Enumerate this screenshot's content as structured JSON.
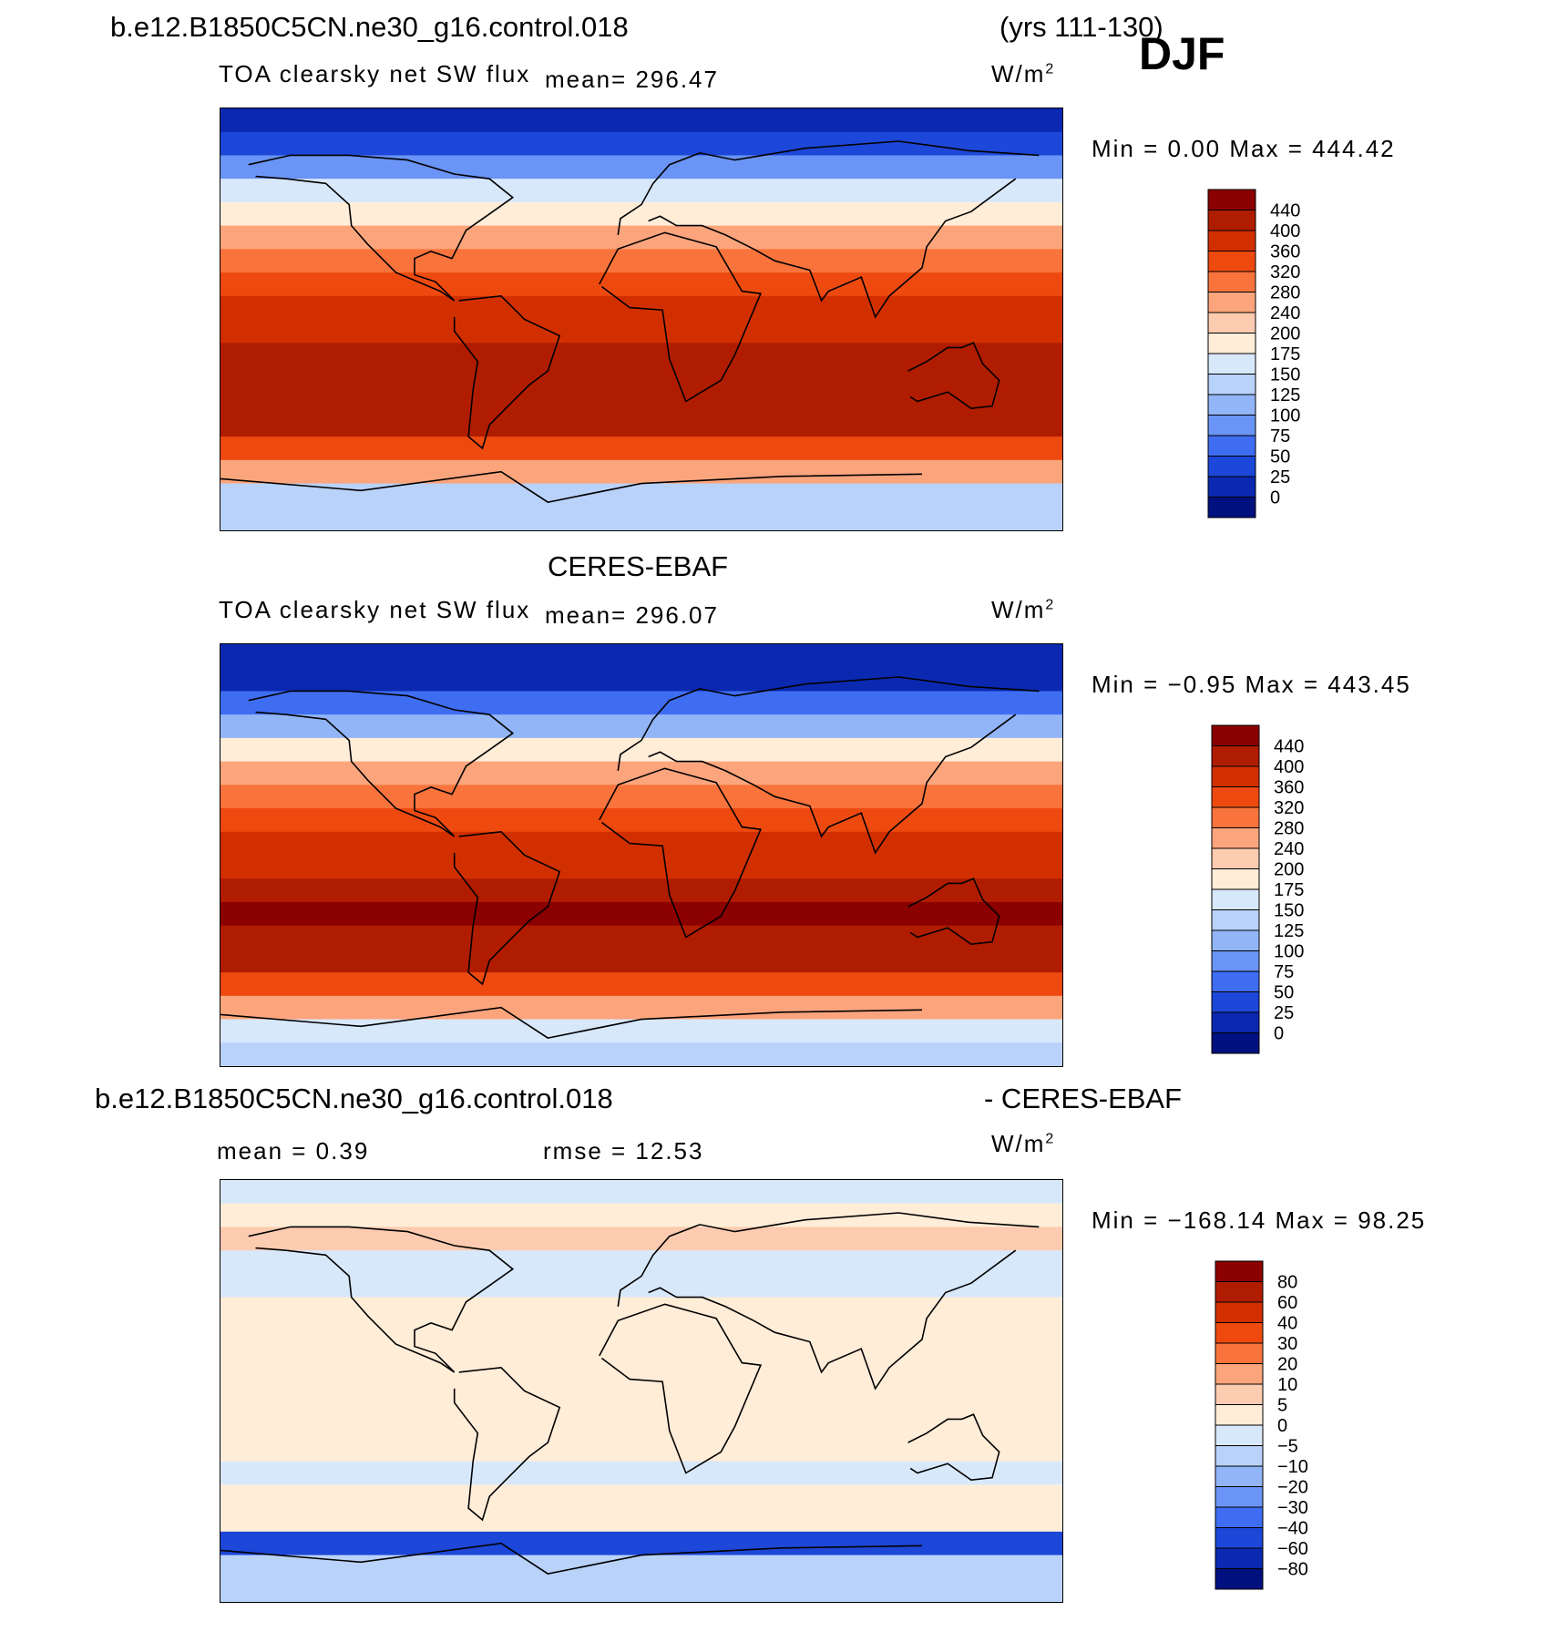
{
  "header": {
    "case_name": "b.e12.B1850C5CN.ne30_g16.control.018",
    "years": "(yrs 111-130)",
    "season": "DJF"
  },
  "panels": [
    {
      "id": "model",
      "variable": "TOA clearsky net SW flux",
      "mean": "mean=  296.47",
      "units": "W/m",
      "units_exp": "2",
      "minmax": "Min  =    0.00  Max  =  444.42",
      "colorbar": {
        "levels": [
          "440",
          "400",
          "360",
          "320",
          "280",
          "240",
          "200",
          "175",
          "150",
          "125",
          "100",
          "75",
          "50",
          "25",
          "0"
        ],
        "colors": [
          "#8b0000",
          "#b01c00",
          "#d22f00",
          "#ee4a10",
          "#f9743c",
          "#fca57c",
          "#fdcbb0",
          "#ffedd8",
          "#d8e8fb",
          "#b9d2fa",
          "#92b5f7",
          "#6a94f5",
          "#3f6df2",
          "#1c47d8",
          "#0a28b0",
          "#00107e"
        ]
      },
      "chart_data": {
        "type": "heatmap",
        "title": "TOA clearsky net SW flux",
        "units": "W/m2",
        "season": "DJF",
        "mean": 296.47,
        "min": 0.0,
        "max": 444.42,
        "zonal_profile": {
          "lat": [
            85,
            75,
            65,
            55,
            45,
            35,
            25,
            15,
            5,
            -5,
            -15,
            -25,
            -35,
            -45,
            -55,
            -65,
            -75,
            -85
          ],
          "values": [
            5,
            30,
            80,
            150,
            190,
            250,
            300,
            340,
            370,
            395,
            415,
            435,
            420,
            400,
            330,
            240,
            130,
            125
          ]
        }
      }
    },
    {
      "id": "obs",
      "title": "CERES-EBAF",
      "variable": "TOA clearsky net SW flux",
      "mean": "mean=  296.07",
      "units": "W/m",
      "units_exp": "2",
      "minmax": "Min  =   −0.95  Max  =  443.45",
      "colorbar": {
        "levels": [
          "440",
          "400",
          "360",
          "320",
          "280",
          "240",
          "200",
          "175",
          "150",
          "125",
          "100",
          "75",
          "50",
          "25",
          "0"
        ],
        "colors": [
          "#8b0000",
          "#b01c00",
          "#d22f00",
          "#ee4a10",
          "#f9743c",
          "#fca57c",
          "#fdcbb0",
          "#ffedd8",
          "#d8e8fb",
          "#b9d2fa",
          "#92b5f7",
          "#6a94f5",
          "#3f6df2",
          "#1c47d8",
          "#0a28b0",
          "#00107e"
        ]
      },
      "chart_data": {
        "type": "heatmap",
        "title": "CERES-EBAF",
        "units": "W/m2",
        "season": "DJF",
        "mean": 296.07,
        "min": -0.95,
        "max": 443.45,
        "zonal_profile": {
          "lat": [
            85,
            75,
            65,
            55,
            45,
            35,
            25,
            15,
            5,
            -5,
            -15,
            -25,
            -35,
            -45,
            -55,
            -65,
            -75,
            -85
          ],
          "values": [
            5,
            20,
            60,
            110,
            175,
            240,
            290,
            330,
            365,
            395,
            415,
            440,
            420,
            400,
            330,
            250,
            150,
            140
          ]
        }
      }
    },
    {
      "id": "diff",
      "title_left": "b.e12.B1850C5CN.ne30_g16.control.018",
      "title_right": "- CERES-EBAF",
      "mean": "mean  =     0.39",
      "rmse": "rmse  =    12.53",
      "units": "W/m",
      "units_exp": "2",
      "minmax": "Min  = −168.14  Max  =    98.25",
      "colorbar": {
        "levels": [
          "80",
          "60",
          "40",
          "30",
          "20",
          "10",
          "5",
          "0",
          "−5",
          "−10",
          "−20",
          "−30",
          "−40",
          "−60",
          "−80"
        ],
        "colors": [
          "#8b0000",
          "#b01c00",
          "#d22f00",
          "#ee4a10",
          "#f9743c",
          "#fca57c",
          "#fdcbb0",
          "#ffedd8",
          "#d8e8fb",
          "#b9d2fa",
          "#92b5f7",
          "#6a94f5",
          "#3f6df2",
          "#1c47d8",
          "#0a28b0",
          "#00107e"
        ]
      },
      "chart_data": {
        "type": "heatmap",
        "title": "b.e12.B1850C5CN.ne30_g16.control.018 - CERES-EBAF",
        "units": "W/m2",
        "season": "DJF",
        "mean": 0.39,
        "rmse": 12.53,
        "min": -168.14,
        "max": 98.25,
        "zonal_profile": {
          "lat": [
            85,
            75,
            65,
            55,
            45,
            35,
            25,
            15,
            5,
            -5,
            -15,
            -25,
            -35,
            -45,
            -55,
            -65,
            -75,
            -85
          ],
          "values": [
            -2,
            3,
            5,
            -2,
            -3,
            3,
            2,
            1,
            2,
            1,
            3,
            2,
            -2,
            2,
            4,
            -45,
            -10,
            -6
          ]
        }
      }
    }
  ]
}
